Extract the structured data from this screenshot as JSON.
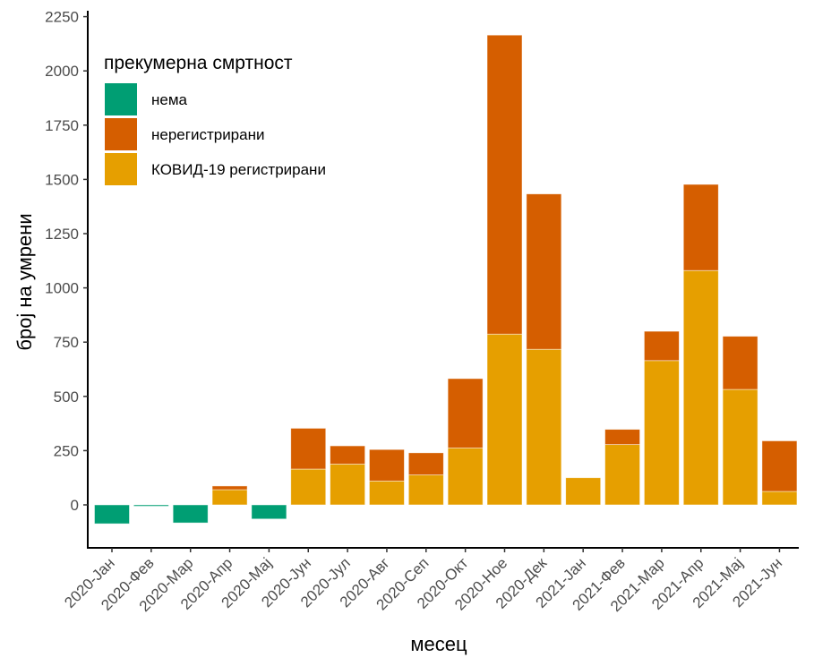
{
  "chart_data": {
    "type": "bar",
    "stacked": true,
    "title": "",
    "xlabel": "месец",
    "ylabel": "број на умрени",
    "ylim": [
      -200,
      2250
    ],
    "yticks": [
      0,
      250,
      500,
      750,
      1000,
      1250,
      1500,
      1750,
      2000,
      2250
    ],
    "grid": false,
    "legend": {
      "title": "прекумерна смртност",
      "position": "top-left",
      "entries": [
        {
          "key": "none",
          "label": "нема",
          "color": "#009E73"
        },
        {
          "key": "unregistered",
          "label": "нерегистрирани",
          "color": "#D55E00"
        },
        {
          "key": "covid",
          "label": "КОВИД-19 регистрирани",
          "color": "#E69F00"
        }
      ]
    },
    "categories": [
      "2020-Јан",
      "2020-Фев",
      "2020-Мар",
      "2020-Апр",
      "2020-Мај",
      "2020-Јун",
      "2020-Јул",
      "2020-Авг",
      "2020-Сеп",
      "2020-Окт",
      "2020-Ное",
      "2020-Дек",
      "2021-Јан",
      "2021-Фев",
      "2021-Мар",
      "2021-Апр",
      "2021-Мај",
      "2021-Јун"
    ],
    "series": [
      {
        "name": "нема",
        "key": "none",
        "color": "#009E73",
        "values": [
          -87,
          -5,
          -83,
          0,
          -65,
          0,
          0,
          0,
          0,
          0,
          0,
          0,
          0,
          0,
          0,
          0,
          0,
          0
        ]
      },
      {
        "name": "КОВИД-19 регистрирани",
        "key": "covid",
        "color": "#E69F00",
        "values": [
          0,
          0,
          0,
          70,
          0,
          165,
          188,
          110,
          138,
          262,
          787,
          717,
          125,
          278,
          665,
          1080,
          532,
          62
        ]
      },
      {
        "name": "нерегистрирани",
        "key": "unregistered",
        "color": "#D55E00",
        "values": [
          0,
          0,
          0,
          17,
          0,
          188,
          84,
          145,
          102,
          320,
          1378,
          716,
          0,
          70,
          135,
          397,
          245,
          233
        ]
      }
    ]
  }
}
